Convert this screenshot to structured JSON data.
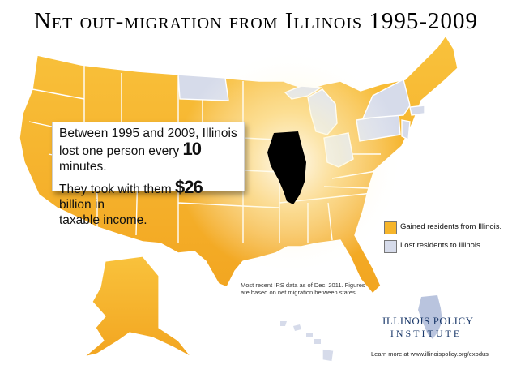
{
  "title": "Net out-migration from Illinois 1995-2009",
  "callout": {
    "line1": "Between 1995 and 2009, Illinois",
    "line2_a": "lost one person every",
    "line2_num": "10",
    "line2_b": "minutes.",
    "line3_a": "They took with them",
    "line3_num": "$26",
    "line3_b": "billion in",
    "line4": "taxable income."
  },
  "legend": [
    {
      "label": "Gained residents from Illinois.",
      "color": "#f6b52b"
    },
    {
      "label": "Lost residents to Illinois.",
      "color": "#d6dbea"
    }
  ],
  "note": "Most recent IRS data as of Dec. 2011. Figures are based on net migration between states.",
  "logo": {
    "line1": "Illinois Policy",
    "line2": "Institute"
  },
  "learn_more": "Learn more at www.illinoispolicy.org/exodus",
  "colors": {
    "gained": "#f6b52b",
    "lost": "#d6dbea",
    "illinois": "#000000"
  }
}
